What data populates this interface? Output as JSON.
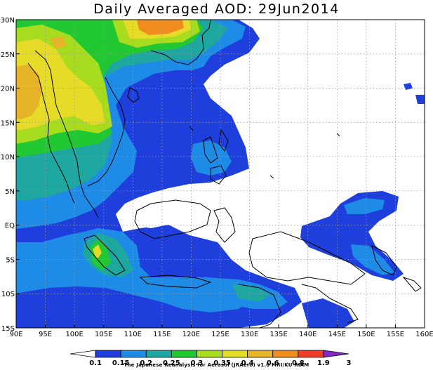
{
  "title": "Daily Averaged AOD: 29Jun2014",
  "map": {
    "lon_range": [
      90,
      160
    ],
    "lat_range": [
      -15,
      30
    ],
    "lon_ticks": [
      "90E",
      "95E",
      "100E",
      "105E",
      "110E",
      "115E",
      "120E",
      "125E",
      "130E",
      "135E",
      "140E",
      "145E",
      "150E",
      "155E",
      "160E"
    ],
    "lat_ticks": [
      "15S",
      "10S",
      "5S",
      "EQ",
      "5N",
      "10N",
      "15N",
      "20N",
      "25N",
      "30N"
    ],
    "grid": true
  },
  "colorbar": {
    "labels": [
      "0.1",
      "0.15",
      "0.2",
      "0.25",
      "0.3",
      "0.35",
      "0.4",
      "0.6",
      "0.8",
      "1.9",
      "3"
    ],
    "colors": [
      "#ffffff",
      "#1f3fdc",
      "#1e8ce6",
      "#1ea6a0",
      "#22c832",
      "#a8dc1e",
      "#e6dc28",
      "#e6b428",
      "#f08c1e",
      "#f03c28",
      "#8228c8"
    ]
  },
  "credit": "The Japanese Reanalysis for Aerosol (JRAero) v1.0 MRI/KU RIAM"
}
